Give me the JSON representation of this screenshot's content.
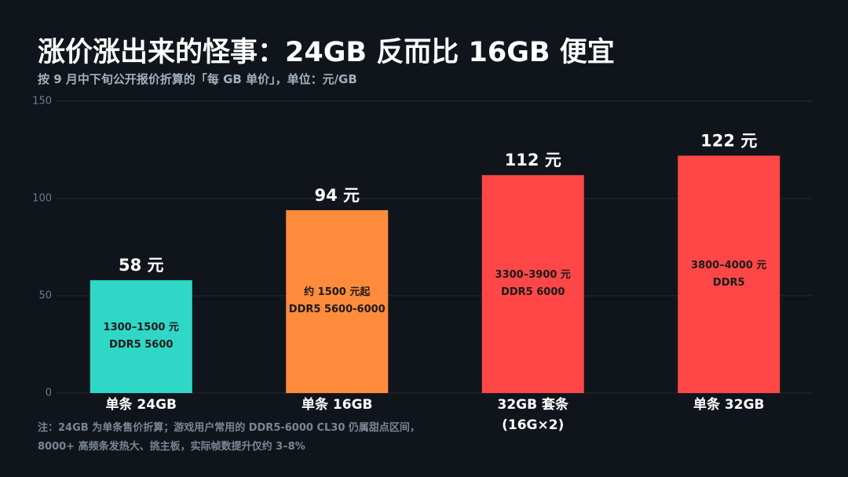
{
  "chart_data": {
    "type": "bar",
    "title": "涨价涨出来的怪事：24GB 反而比 16GB 便宜",
    "subtitle": "按 9 月中下旬公开报价折算的「每 GB 单价」，单位：元/GB",
    "categories": [
      "单条 24GB",
      "单条 16GB",
      "32GB 套条\n(16G×2)",
      "单条 32GB"
    ],
    "values": [
      58,
      94,
      112,
      122
    ],
    "value_labels": [
      "58 元",
      "94 元",
      "112 元",
      "122 元"
    ],
    "colors": [
      "#2fd8c6",
      "#ff8c3c",
      "#ff4747",
      "#ff4747"
    ],
    "annotations": [
      "1300–1500 元\nDDR5 5600",
      "约 1500 元起\nDDR5 5600-6000",
      "3300–3900 元\nDDR5 6000",
      "3800–4000 元\nDDR5"
    ],
    "ylim": [
      0,
      150
    ],
    "yticks": [
      0,
      50,
      100,
      150
    ],
    "grid": true,
    "footnote": [
      "注：24GB 为单条售价折算；游戏用户常用的 DDR5-6000 CL30 仍属甜点区间，",
      "8000+ 高频条发热大、挑主板，实际帧数提升仅约 3–8%"
    ]
  }
}
